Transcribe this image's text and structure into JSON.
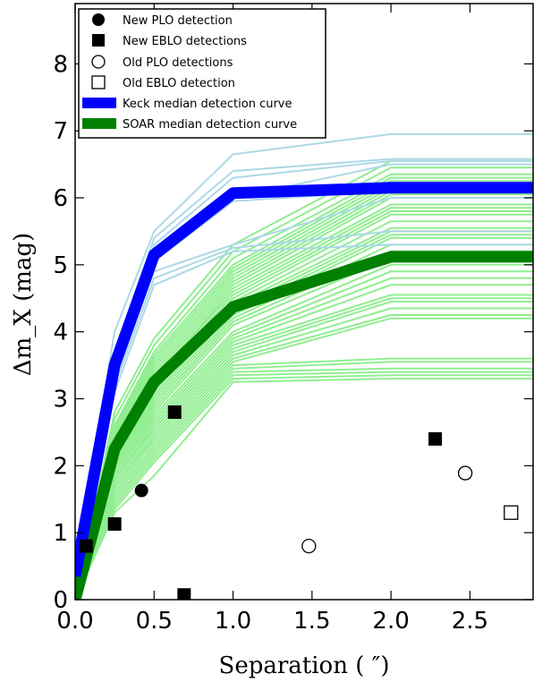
{
  "chart_data": {
    "type": "line",
    "xlabel": "Separation ( ″)",
    "ylabel": "Δm_X (mag)",
    "xlim": [
      0,
      2.9
    ],
    "ylim": [
      0,
      8.9
    ],
    "xticks": [
      "0.0",
      "0.5",
      "1.0",
      "1.5",
      "2.0",
      "2.5"
    ],
    "xtick_values": [
      0,
      0.5,
      1.0,
      1.5,
      2.0,
      2.5
    ],
    "yticks": [
      "0",
      "1",
      "2",
      "3",
      "4",
      "5",
      "6",
      "7",
      "8"
    ],
    "ytick_values": [
      0,
      1,
      2,
      3,
      4,
      5,
      6,
      7,
      8
    ],
    "grid": false,
    "legend_position": "top-left",
    "colors": {
      "keck_median": "#0000ff",
      "soar_median": "#008000",
      "keck_individual": "#add8e6",
      "soar_individual": "#90ee90",
      "markers": "#000000"
    },
    "curve_x": [
      0,
      0.25,
      0.5,
      1.0,
      2.0,
      2.9
    ],
    "series": [
      {
        "name": "Keck median detection curve",
        "x": [
          0,
          0.25,
          0.5,
          1.0,
          2.0,
          2.9
        ],
        "values": [
          0.35,
          3.5,
          5.15,
          6.07,
          6.15,
          6.15
        ]
      },
      {
        "name": "SOAR median detection curve",
        "x": [
          0,
          0.25,
          0.5,
          1.0,
          2.0,
          2.9
        ],
        "values": [
          0.0,
          2.25,
          3.25,
          4.37,
          5.12,
          5.12
        ]
      }
    ],
    "keck_individual_curves": [
      [
        0.4,
        4.0,
        5.5,
        6.65,
        6.95,
        6.95
      ],
      [
        0.35,
        3.7,
        5.4,
        6.4,
        6.58,
        6.58
      ],
      [
        0.35,
        3.6,
        5.3,
        6.3,
        6.55,
        6.55
      ],
      [
        0.3,
        3.5,
        5.1,
        6.0,
        6.5,
        6.5
      ],
      [
        0.3,
        3.45,
        5.05,
        5.95,
        6.1,
        6.1
      ],
      [
        0.3,
        3.3,
        4.9,
        5.3,
        6.0,
        6.0
      ],
      [
        0.3,
        3.2,
        4.8,
        5.25,
        5.5,
        5.5
      ],
      [
        0.25,
        3.1,
        4.7,
        5.2,
        5.3,
        5.3
      ]
    ],
    "soar_individual_curves": [
      [
        0.0,
        2.8,
        3.9,
        5.3,
        6.55,
        6.55
      ],
      [
        0.0,
        2.7,
        3.8,
        5.2,
        6.45,
        6.45
      ],
      [
        0.0,
        2.6,
        3.7,
        5.1,
        6.35,
        6.35
      ],
      [
        0.0,
        2.55,
        3.65,
        5.0,
        6.3,
        6.3
      ],
      [
        0.0,
        2.5,
        3.6,
        4.95,
        6.25,
        6.25
      ],
      [
        0.0,
        2.45,
        3.55,
        4.9,
        6.2,
        6.2
      ],
      [
        0.0,
        2.4,
        3.5,
        4.85,
        6.15,
        6.15
      ],
      [
        0.0,
        2.4,
        3.45,
        4.8,
        6.1,
        6.1
      ],
      [
        0.0,
        2.35,
        3.4,
        4.75,
        6.05,
        6.05
      ],
      [
        0.0,
        2.3,
        3.35,
        4.7,
        6.0,
        6.0
      ],
      [
        0.0,
        2.3,
        3.3,
        4.65,
        5.9,
        5.9
      ],
      [
        0.0,
        2.25,
        3.3,
        4.6,
        5.85,
        5.85
      ],
      [
        0.0,
        2.2,
        3.25,
        4.55,
        5.8,
        5.8
      ],
      [
        0.0,
        2.2,
        3.2,
        4.5,
        5.75,
        5.75
      ],
      [
        0.0,
        2.15,
        3.15,
        4.45,
        5.65,
        5.65
      ],
      [
        0.0,
        2.1,
        3.1,
        4.4,
        5.55,
        5.55
      ],
      [
        0.0,
        2.1,
        3.05,
        4.35,
        5.5,
        5.5
      ],
      [
        0.0,
        2.05,
        3.0,
        4.3,
        5.45,
        5.45
      ],
      [
        0.0,
        2.0,
        2.95,
        4.25,
        5.4,
        5.4
      ],
      [
        0.0,
        2.0,
        2.9,
        4.2,
        5.3,
        5.3
      ],
      [
        0.0,
        1.95,
        2.85,
        4.15,
        5.2,
        5.2
      ],
      [
        0.0,
        1.95,
        2.8,
        4.1,
        5.1,
        5.1
      ],
      [
        0.0,
        1.9,
        2.75,
        4.0,
        5.0,
        5.0
      ],
      [
        0.0,
        1.9,
        2.7,
        3.95,
        4.9,
        4.9
      ],
      [
        0.0,
        1.85,
        2.65,
        3.9,
        4.8,
        4.8
      ],
      [
        0.0,
        1.8,
        2.6,
        3.85,
        4.7,
        4.7
      ],
      [
        0.0,
        1.8,
        2.55,
        3.8,
        4.55,
        4.55
      ],
      [
        0.0,
        1.75,
        2.5,
        3.75,
        4.5,
        4.5
      ],
      [
        0.0,
        1.7,
        2.45,
        3.7,
        4.45,
        4.45
      ],
      [
        0.0,
        1.7,
        2.4,
        3.65,
        4.35,
        4.35
      ],
      [
        0.0,
        1.65,
        2.35,
        3.6,
        4.25,
        4.25
      ],
      [
        0.0,
        1.6,
        2.3,
        3.55,
        4.2,
        4.2
      ],
      [
        0.0,
        1.55,
        2.25,
        3.5,
        3.6,
        3.6
      ],
      [
        0.0,
        1.5,
        2.2,
        3.45,
        3.55,
        3.55
      ],
      [
        0.0,
        1.45,
        2.15,
        3.4,
        3.45,
        3.45
      ],
      [
        0.0,
        1.4,
        2.1,
        3.35,
        3.4,
        3.4
      ],
      [
        0.0,
        1.35,
        2.05,
        3.3,
        3.35,
        3.35
      ],
      [
        0.0,
        1.3,
        1.85,
        3.25,
        3.3,
        3.3
      ]
    ],
    "points": [
      {
        "name": "New PLO detection",
        "marker": "filled-circle",
        "x": [
          0.42
        ],
        "y": [
          1.63
        ]
      },
      {
        "name": "New EBLO detections",
        "marker": "filled-square",
        "x": [
          0.07,
          0.25,
          0.63,
          0.69,
          2.28
        ],
        "y": [
          0.8,
          1.13,
          2.8,
          0.07,
          2.4
        ]
      },
      {
        "name": "Old PLO detections",
        "marker": "open-circle",
        "x": [
          1.48,
          2.47
        ],
        "y": [
          0.8,
          1.89
        ]
      },
      {
        "name": "Old EBLO detection",
        "marker": "open-square",
        "x": [
          2.76
        ],
        "y": [
          1.3
        ]
      }
    ],
    "legend": [
      {
        "label": "New PLO detection",
        "marker": "filled-circle"
      },
      {
        "label": "New EBLO detections",
        "marker": "filled-square"
      },
      {
        "label": "Old PLO detections",
        "marker": "open-circle"
      },
      {
        "label": "Old EBLO detection",
        "marker": "open-square"
      },
      {
        "label": "Keck median detection curve",
        "marker": "blue-band"
      },
      {
        "label": "SOAR median detection curve",
        "marker": "green-band"
      }
    ]
  }
}
